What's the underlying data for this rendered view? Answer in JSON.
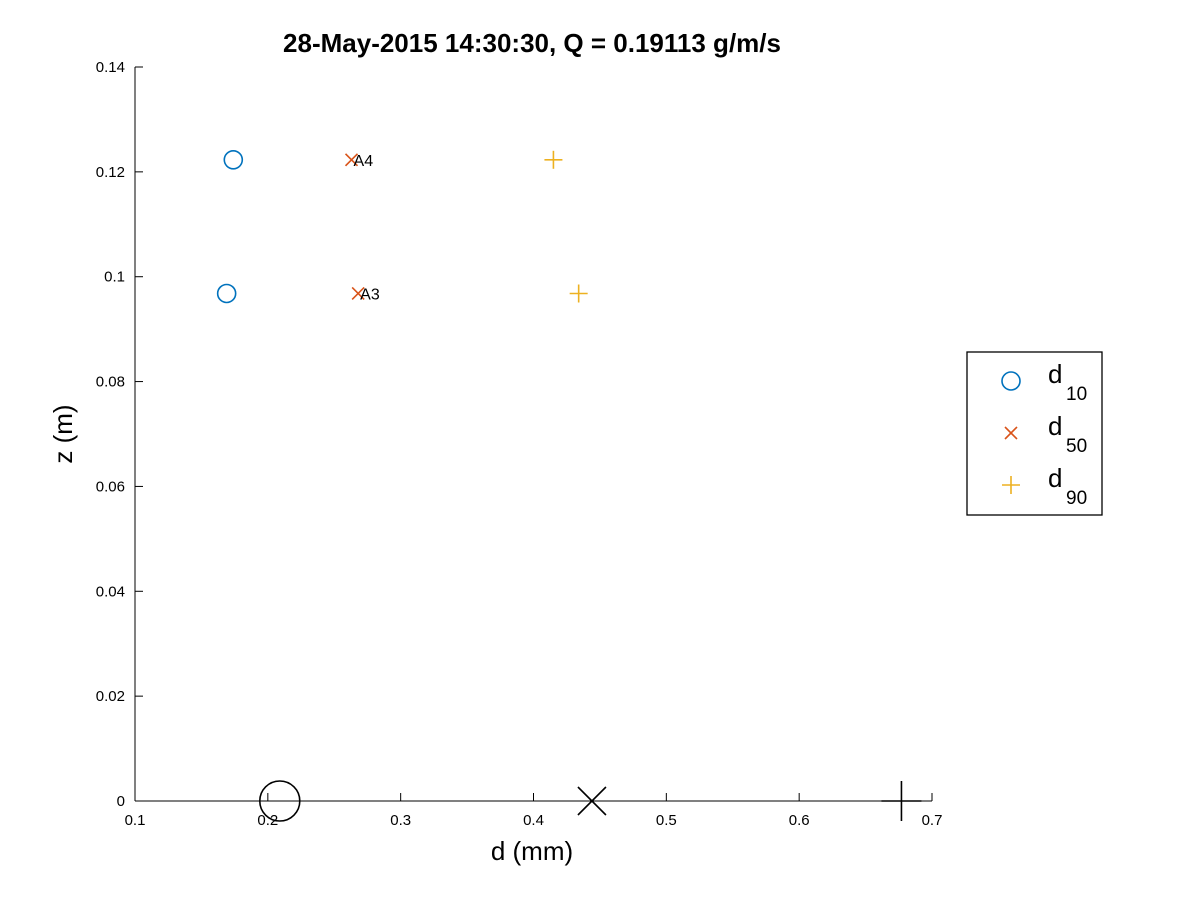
{
  "chart_data": {
    "type": "scatter",
    "title": "28-May-2015 14:30:30, Q = 0.19113 g/m/s",
    "xlabel": "d (mm)",
    "ylabel": "z (m)",
    "xlim": [
      0.1,
      0.7
    ],
    "ylim": [
      0,
      0.14
    ],
    "x_ticks": [
      "0.1",
      "0.2",
      "0.3",
      "0.4",
      "0.5",
      "0.6",
      "0.7"
    ],
    "y_ticks": [
      "0",
      "0.02",
      "0.04",
      "0.06",
      "0.08",
      "0.1",
      "0.12",
      "0.14"
    ],
    "legend_position": "outside-right",
    "grid": false,
    "series": [
      {
        "name": "d10",
        "name_main": "d",
        "name_sub": "10",
        "marker": "circle",
        "color": "#0072BD",
        "points": [
          {
            "x": 0.174,
            "y": 0.1223
          },
          {
            "x": 0.169,
            "y": 0.0968
          }
        ]
      },
      {
        "name": "d50",
        "name_main": "d",
        "name_sub": "50",
        "marker": "x",
        "color": "#D95319",
        "points": [
          {
            "x": 0.263,
            "y": 0.1223,
            "label": "A4"
          },
          {
            "x": 0.268,
            "y": 0.0968,
            "label": "A3"
          }
        ]
      },
      {
        "name": "d90",
        "name_main": "d",
        "name_sub": "90",
        "marker": "plus",
        "color": "#EDB120",
        "points": [
          {
            "x": 0.415,
            "y": 0.1223
          },
          {
            "x": 0.434,
            "y": 0.0968
          }
        ]
      }
    ],
    "reference_markers": [
      {
        "marker": "circle",
        "color": "#000000",
        "x": 0.209,
        "y": 0
      },
      {
        "marker": "x",
        "color": "#000000",
        "x": 0.444,
        "y": 0
      },
      {
        "marker": "plus",
        "color": "#000000",
        "x": 0.677,
        "y": 0
      }
    ]
  }
}
